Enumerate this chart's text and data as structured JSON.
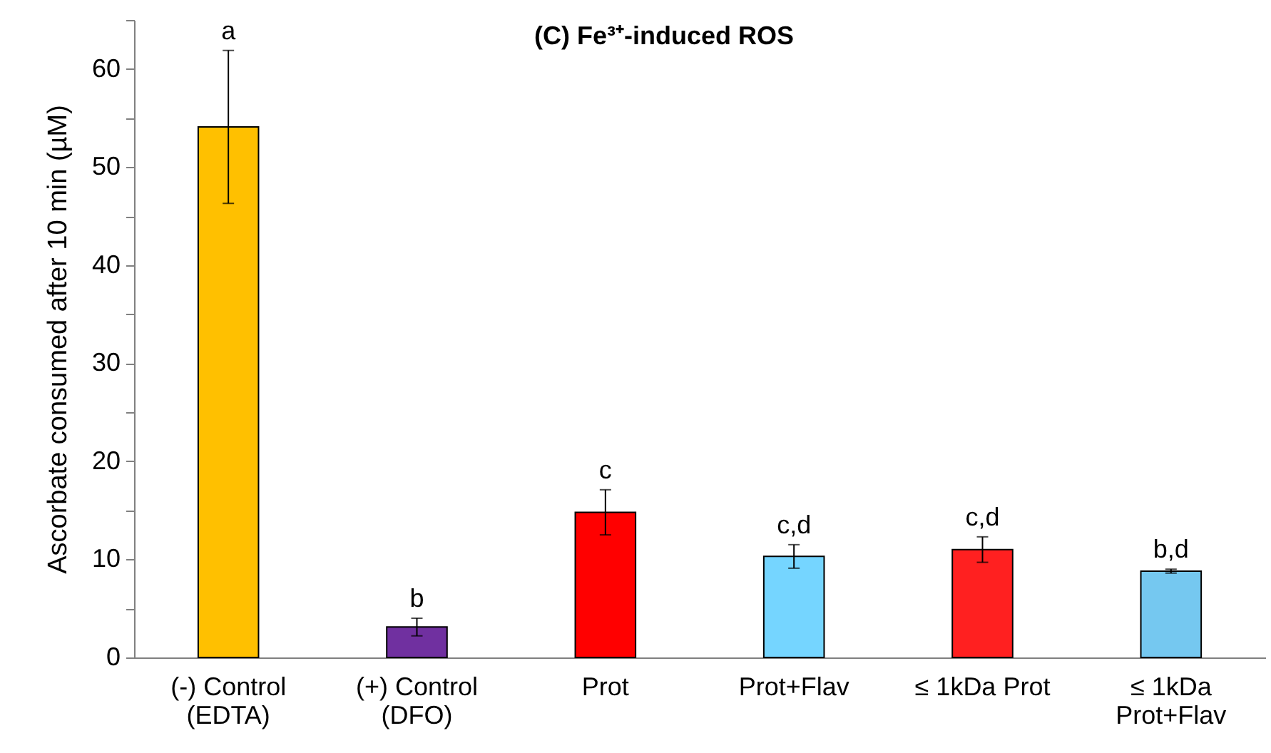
{
  "chart_data": {
    "type": "bar",
    "title": "(C) Fe³⁺-induced ROS",
    "ylabel": "Ascorbate consumed after 10 min (µM)",
    "categories": [
      "(-) Control\n(EDTA)",
      "(+) Control\n(DFO)",
      "Prot",
      "Prot+Flav",
      "≤ 1kDa Prot",
      "≤ 1kDa\nProt+Flav"
    ],
    "values": [
      54.1,
      3.1,
      14.8,
      10.3,
      11.0,
      8.8
    ],
    "colors": [
      "#ffc000",
      "#7030a0",
      "#ff0000",
      "#75d5ff",
      "#ff2020",
      "#75c8f0"
    ],
    "errors": [
      7.8,
      0.9,
      2.3,
      1.2,
      1.3,
      0.2
    ],
    "ylim": [
      0,
      65
    ],
    "yticks": [
      0,
      {
        "value": 5,
        "label": null
      },
      10,
      {
        "value": 15,
        "label": null
      },
      20,
      {
        "value": 25,
        "label": null
      },
      30,
      {
        "value": 35,
        "label": null
      },
      40,
      {
        "value": 45,
        "label": null
      },
      50,
      {
        "value": 55,
        "label": null
      },
      60,
      {
        "value": 65,
        "label": null
      }
    ],
    "grid": false,
    "annotations": [
      {
        "text": "a",
        "x": "(-) Control\n(EDTA)",
        "y": 61.9
      },
      {
        "text": "b",
        "x": "(+) Control\n(DFO)",
        "y": 4.0
      },
      {
        "text": "c",
        "x": "Prot",
        "y": 17.1
      },
      {
        "text": "c,d",
        "x": "Prot+Flav",
        "y": 11.5
      },
      {
        "text": "c,d",
        "x": "≤ 1kDa Prot",
        "y": 12.3
      },
      {
        "text": "b,d",
        "x": "≤ 1kDa\nProt+Flav",
        "y": 9.0
      }
    ]
  }
}
